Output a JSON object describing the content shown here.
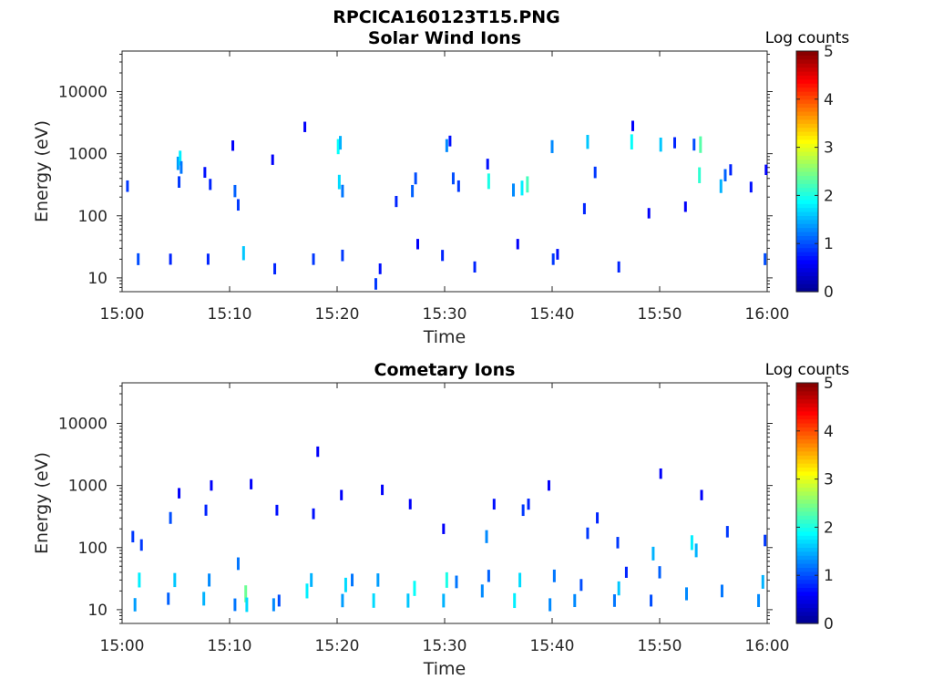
{
  "figure_title": "RPCICA160123T15.PNG",
  "colormap": [
    "#00008f",
    "#0000ff",
    "#0080ff",
    "#00ffff",
    "#80ff80",
    "#ffff00",
    "#ff8000",
    "#ff0000",
    "#800000"
  ],
  "chart_data": [
    {
      "type": "heatmap",
      "title": "Solar Wind Ions",
      "xlabel": "Time",
      "ylabel": "Energy (eV)",
      "yscale": "log",
      "xlim": [
        "15:00",
        "16:00"
      ],
      "ylim": [
        6,
        45000
      ],
      "xticks": [
        "15:00",
        "15:10",
        "15:20",
        "15:30",
        "15:40",
        "15:50",
        "16:00"
      ],
      "yticks": [
        {
          "value": 10,
          "label": "10"
        },
        {
          "value": 100,
          "label": "100"
        },
        {
          "value": 1000,
          "label": "1000"
        },
        {
          "value": 10000,
          "label": "10000"
        }
      ],
      "colorbar": {
        "title": "Log counts",
        "range": [
          0,
          5
        ],
        "ticks": [
          "0",
          "1",
          "2",
          "3",
          "4",
          "5"
        ]
      },
      "cells": [
        {
          "t": 0.5,
          "e": 300,
          "c": 0.9
        },
        {
          "t": 1.5,
          "e": 20,
          "c": 1.0
        },
        {
          "t": 4.5,
          "e": 20,
          "c": 0.8
        },
        {
          "t": 5.2,
          "e": 700,
          "c": 1.4
        },
        {
          "t": 5.4,
          "e": 850,
          "c": 1.8
        },
        {
          "t": 5.5,
          "e": 600,
          "c": 1.2
        },
        {
          "t": 5.3,
          "e": 350,
          "c": 0.9
        },
        {
          "t": 8.0,
          "e": 20,
          "c": 0.8
        },
        {
          "t": 7.7,
          "e": 500,
          "c": 0.7
        },
        {
          "t": 8.2,
          "e": 320,
          "c": 0.8
        },
        {
          "t": 10.5,
          "e": 250,
          "c": 1.1
        },
        {
          "t": 10.8,
          "e": 150,
          "c": 0.9
        },
        {
          "t": 11.3,
          "e": 25,
          "c": 1.6
        },
        {
          "t": 10.3,
          "e": 1350,
          "c": 0.6
        },
        {
          "t": 14.2,
          "e": 14,
          "c": 0.8
        },
        {
          "t": 14.0,
          "e": 800,
          "c": 0.6
        },
        {
          "t": 17.0,
          "e": 2700,
          "c": 0.6
        },
        {
          "t": 17.8,
          "e": 20,
          "c": 0.9
        },
        {
          "t": 20.1,
          "e": 1300,
          "c": 1.9
        },
        {
          "t": 20.3,
          "e": 1500,
          "c": 1.5
        },
        {
          "t": 20.2,
          "e": 350,
          "c": 1.7
        },
        {
          "t": 20.5,
          "e": 250,
          "c": 1.2
        },
        {
          "t": 20.5,
          "e": 23,
          "c": 0.9
        },
        {
          "t": 23.6,
          "e": 8,
          "c": 0.9
        },
        {
          "t": 24.0,
          "e": 14,
          "c": 0.7
        },
        {
          "t": 25.5,
          "e": 170,
          "c": 0.8
        },
        {
          "t": 27.0,
          "e": 250,
          "c": 1.1
        },
        {
          "t": 27.3,
          "e": 400,
          "c": 1.0
        },
        {
          "t": 27.5,
          "e": 35,
          "c": 0.6
        },
        {
          "t": 29.8,
          "e": 23,
          "c": 0.8
        },
        {
          "t": 30.2,
          "e": 1350,
          "c": 1.3
        },
        {
          "t": 30.5,
          "e": 1600,
          "c": 0.7
        },
        {
          "t": 30.8,
          "e": 400,
          "c": 1.0
        },
        {
          "t": 31.3,
          "e": 300,
          "c": 0.9
        },
        {
          "t": 32.8,
          "e": 15,
          "c": 0.8
        },
        {
          "t": 34.1,
          "e": 360,
          "c": 2.0
        },
        {
          "t": 34.0,
          "e": 680,
          "c": 0.7
        },
        {
          "t": 36.4,
          "e": 260,
          "c": 1.3
        },
        {
          "t": 37.2,
          "e": 280,
          "c": 1.8
        },
        {
          "t": 37.7,
          "e": 320,
          "c": 2.2
        },
        {
          "t": 36.8,
          "e": 35,
          "c": 0.6
        },
        {
          "t": 40.0,
          "e": 1300,
          "c": 1.3
        },
        {
          "t": 40.1,
          "e": 20,
          "c": 0.9
        },
        {
          "t": 40.5,
          "e": 24,
          "c": 0.7
        },
        {
          "t": 43.0,
          "e": 130,
          "c": 0.8
        },
        {
          "t": 43.3,
          "e": 1550,
          "c": 1.6
        },
        {
          "t": 44.0,
          "e": 500,
          "c": 0.9
        },
        {
          "t": 46.2,
          "e": 15,
          "c": 0.8
        },
        {
          "t": 47.4,
          "e": 1550,
          "c": 1.9
        },
        {
          "t": 47.5,
          "e": 2800,
          "c": 0.6
        },
        {
          "t": 49.0,
          "e": 110,
          "c": 0.6
        },
        {
          "t": 50.1,
          "e": 1400,
          "c": 1.6
        },
        {
          "t": 51.4,
          "e": 1500,
          "c": 0.8
        },
        {
          "t": 53.2,
          "e": 1400,
          "c": 1.0
        },
        {
          "t": 53.8,
          "e": 1400,
          "c": 2.3
        },
        {
          "t": 53.7,
          "e": 450,
          "c": 2.1
        },
        {
          "t": 52.4,
          "e": 140,
          "c": 0.6
        },
        {
          "t": 55.7,
          "e": 300,
          "c": 1.5
        },
        {
          "t": 56.1,
          "e": 450,
          "c": 1.1
        },
        {
          "t": 56.6,
          "e": 550,
          "c": 0.8
        },
        {
          "t": 58.5,
          "e": 290,
          "c": 0.7
        },
        {
          "t": 59.8,
          "e": 20,
          "c": 1.0
        },
        {
          "t": 59.9,
          "e": 550,
          "c": 0.6
        }
      ]
    },
    {
      "type": "heatmap",
      "title": "Cometary Ions",
      "xlabel": "Time",
      "ylabel": "Energy (eV)",
      "yscale": "log",
      "xlim": [
        "15:00",
        "16:00"
      ],
      "ylim": [
        6,
        45000
      ],
      "xticks": [
        "15:00",
        "15:10",
        "15:20",
        "15:30",
        "15:40",
        "15:50",
        "16:00"
      ],
      "yticks": [
        {
          "value": 10,
          "label": "10"
        },
        {
          "value": 100,
          "label": "100"
        },
        {
          "value": 1000,
          "label": "1000"
        },
        {
          "value": 10000,
          "label": "10000"
        }
      ],
      "colorbar": {
        "title": "Log counts",
        "range": [
          0,
          5
        ],
        "ticks": [
          "0",
          "1",
          "2",
          "3",
          "4",
          "5"
        ]
      },
      "cells": [
        {
          "t": 1.2,
          "e": 12,
          "c": 1.4
        },
        {
          "t": 1.6,
          "e": 30,
          "c": 1.8
        },
        {
          "t": 1.0,
          "e": 150,
          "c": 0.9
        },
        {
          "t": 1.8,
          "e": 110,
          "c": 0.9
        },
        {
          "t": 4.3,
          "e": 15,
          "c": 1.1
        },
        {
          "t": 4.9,
          "e": 30,
          "c": 1.6
        },
        {
          "t": 4.5,
          "e": 300,
          "c": 1.0
        },
        {
          "t": 5.3,
          "e": 750,
          "c": 0.6
        },
        {
          "t": 7.6,
          "e": 15,
          "c": 1.5
        },
        {
          "t": 8.1,
          "e": 30,
          "c": 1.3
        },
        {
          "t": 7.8,
          "e": 400,
          "c": 0.8
        },
        {
          "t": 8.3,
          "e": 1000,
          "c": 0.6
        },
        {
          "t": 10.5,
          "e": 12,
          "c": 1.2
        },
        {
          "t": 10.8,
          "e": 55,
          "c": 1.2
        },
        {
          "t": 11.5,
          "e": 18,
          "c": 2.4
        },
        {
          "t": 11.6,
          "e": 12,
          "c": 1.7
        },
        {
          "t": 12.0,
          "e": 1050,
          "c": 0.6
        },
        {
          "t": 14.1,
          "e": 12,
          "c": 1.3
        },
        {
          "t": 14.6,
          "e": 14,
          "c": 1.0
        },
        {
          "t": 14.4,
          "e": 400,
          "c": 0.7
        },
        {
          "t": 17.2,
          "e": 20,
          "c": 1.8
        },
        {
          "t": 17.6,
          "e": 30,
          "c": 1.5
        },
        {
          "t": 17.8,
          "e": 350,
          "c": 0.7
        },
        {
          "t": 18.2,
          "e": 3500,
          "c": 0.6
        },
        {
          "t": 20.5,
          "e": 14,
          "c": 1.4
        },
        {
          "t": 20.8,
          "e": 25,
          "c": 1.7
        },
        {
          "t": 20.4,
          "e": 700,
          "c": 0.6
        },
        {
          "t": 21.4,
          "e": 30,
          "c": 1.2
        },
        {
          "t": 23.4,
          "e": 14,
          "c": 1.7
        },
        {
          "t": 23.8,
          "e": 30,
          "c": 1.4
        },
        {
          "t": 24.2,
          "e": 850,
          "c": 0.6
        },
        {
          "t": 26.6,
          "e": 14,
          "c": 1.6
        },
        {
          "t": 27.2,
          "e": 22,
          "c": 1.9
        },
        {
          "t": 26.8,
          "e": 500,
          "c": 0.6
        },
        {
          "t": 29.9,
          "e": 14,
          "c": 1.5
        },
        {
          "t": 30.2,
          "e": 30,
          "c": 2.0
        },
        {
          "t": 31.1,
          "e": 28,
          "c": 1.2
        },
        {
          "t": 29.9,
          "e": 200,
          "c": 0.6
        },
        {
          "t": 33.5,
          "e": 20,
          "c": 1.3
        },
        {
          "t": 34.1,
          "e": 35,
          "c": 1.1
        },
        {
          "t": 33.9,
          "e": 150,
          "c": 1.3
        },
        {
          "t": 34.6,
          "e": 500,
          "c": 0.7
        },
        {
          "t": 36.5,
          "e": 14,
          "c": 1.8
        },
        {
          "t": 37.0,
          "e": 30,
          "c": 1.7
        },
        {
          "t": 37.3,
          "e": 400,
          "c": 0.9
        },
        {
          "t": 37.8,
          "e": 500,
          "c": 0.8
        },
        {
          "t": 39.8,
          "e": 12,
          "c": 1.3
        },
        {
          "t": 40.2,
          "e": 35,
          "c": 1.2
        },
        {
          "t": 39.7,
          "e": 1000,
          "c": 0.6
        },
        {
          "t": 42.1,
          "e": 14,
          "c": 1.3
        },
        {
          "t": 42.7,
          "e": 25,
          "c": 1.0
        },
        {
          "t": 43.3,
          "e": 170,
          "c": 0.9
        },
        {
          "t": 44.2,
          "e": 300,
          "c": 0.8
        },
        {
          "t": 45.8,
          "e": 14,
          "c": 1.2
        },
        {
          "t": 46.2,
          "e": 22,
          "c": 1.6
        },
        {
          "t": 46.1,
          "e": 120,
          "c": 0.9
        },
        {
          "t": 46.9,
          "e": 40,
          "c": 0.8
        },
        {
          "t": 49.2,
          "e": 14,
          "c": 1.0
        },
        {
          "t": 49.4,
          "e": 80,
          "c": 1.5
        },
        {
          "t": 50.0,
          "e": 40,
          "c": 1.1
        },
        {
          "t": 50.1,
          "e": 1550,
          "c": 0.6
        },
        {
          "t": 52.5,
          "e": 18,
          "c": 1.3
        },
        {
          "t": 53.0,
          "e": 120,
          "c": 1.8
        },
        {
          "t": 53.4,
          "e": 90,
          "c": 1.5
        },
        {
          "t": 53.9,
          "e": 700,
          "c": 0.6
        },
        {
          "t": 55.8,
          "e": 20,
          "c": 1.2
        },
        {
          "t": 56.3,
          "e": 180,
          "c": 0.9
        },
        {
          "t": 59.2,
          "e": 14,
          "c": 1.3
        },
        {
          "t": 59.6,
          "e": 28,
          "c": 1.5
        },
        {
          "t": 59.8,
          "e": 130,
          "c": 0.9
        }
      ]
    }
  ]
}
